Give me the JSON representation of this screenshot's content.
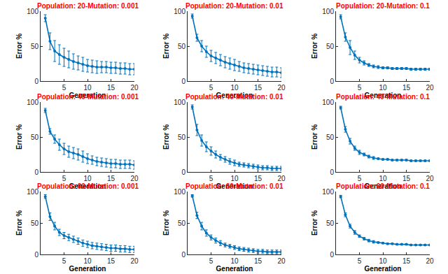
{
  "chart_data": [
    {
      "type": "line",
      "title": "Population: 20-Mutation: 0.001",
      "xlabel": "Generation",
      "ylabel": "Error %",
      "x": [
        1,
        2,
        3,
        4,
        5,
        6,
        7,
        8,
        9,
        10,
        11,
        12,
        13,
        14,
        15,
        16,
        17,
        18,
        19,
        20
      ],
      "series": [
        {
          "color": "#0072bd",
          "marker": "point",
          "values": [
            90,
            57,
            43,
            38,
            34,
            31,
            28,
            26,
            24,
            22,
            21,
            20,
            20,
            20,
            19,
            19,
            18,
            18,
            17,
            17
          ],
          "errors": [
            5,
            12,
            15,
            14,
            13,
            12,
            11,
            10,
            10,
            9,
            9,
            9,
            8,
            8,
            8,
            8,
            8,
            8,
            8,
            8
          ]
        }
      ],
      "xlim": [
        0,
        20
      ],
      "xticks": [
        5,
        10,
        15,
        20
      ],
      "ylim": [
        0,
        100
      ],
      "yticks": [
        0,
        50,
        100
      ],
      "grid": false
    },
    {
      "type": "line",
      "title": "Population: 20-Mutation: 0.01",
      "xlabel": "Generation",
      "ylabel": "Error %",
      "x": [
        1,
        2,
        3,
        4,
        5,
        6,
        7,
        8,
        9,
        10,
        11,
        12,
        13,
        14,
        15,
        16,
        17,
        18,
        19,
        20
      ],
      "series": [
        {
          "color": "#0072bd",
          "marker": "point",
          "values": [
            93,
            62,
            50,
            42,
            36,
            33,
            30,
            27,
            25,
            23,
            21,
            19,
            18,
            17,
            16,
            15,
            14,
            13,
            13,
            12
          ],
          "errors": [
            3,
            5,
            8,
            8,
            8,
            8,
            8,
            8,
            8,
            8,
            7,
            7,
            7,
            7,
            7,
            7,
            7,
            7,
            7,
            7
          ]
        }
      ],
      "xlim": [
        0,
        20
      ],
      "xticks": [
        5,
        10,
        15,
        20
      ],
      "ylim": [
        0,
        100
      ],
      "yticks": [
        0,
        50,
        100
      ],
      "grid": false
    },
    {
      "type": "line",
      "title": "Population: 20-Mutation: 0.1",
      "xlabel": "Generation",
      "ylabel": "Error %",
      "x": [
        1,
        2,
        3,
        4,
        5,
        6,
        7,
        8,
        9,
        10,
        11,
        12,
        13,
        14,
        15,
        16,
        17,
        18,
        19,
        20
      ],
      "series": [
        {
          "color": "#0072bd",
          "marker": "point",
          "values": [
            92,
            63,
            48,
            37,
            30,
            26,
            23,
            21,
            20,
            19,
            19,
            18,
            18,
            18,
            18,
            17,
            17,
            17,
            17,
            17
          ],
          "errors": [
            3,
            6,
            10,
            6,
            4,
            3,
            2,
            2,
            2,
            1.5,
            1.5,
            1.5,
            1.5,
            1.5,
            1.5,
            1.5,
            1.5,
            1.5,
            1.5,
            1.5
          ]
        }
      ],
      "xlim": [
        0,
        20
      ],
      "xticks": [
        5,
        10,
        15,
        20
      ],
      "ylim": [
        0,
        100
      ],
      "yticks": [
        0,
        50,
        100
      ],
      "grid": false
    },
    {
      "type": "line",
      "title": "Population: 40-Mutation: 0.001",
      "xlabel": "Generation",
      "ylabel": "Error %",
      "x": [
        1,
        2,
        3,
        4,
        5,
        6,
        7,
        8,
        9,
        10,
        11,
        12,
        13,
        14,
        15,
        16,
        17,
        18,
        19,
        20
      ],
      "series": [
        {
          "color": "#0072bd",
          "marker": "point",
          "values": [
            88,
            58,
            47,
            39,
            33,
            29,
            27,
            25,
            22,
            19,
            17,
            15,
            14,
            13,
            12,
            12,
            11,
            11,
            11,
            10
          ],
          "errors": [
            3,
            4,
            6,
            8,
            8,
            8,
            8,
            8,
            8,
            7,
            6,
            6,
            6,
            6,
            6,
            6,
            6,
            6,
            6,
            6
          ]
        }
      ],
      "xlim": [
        0,
        20
      ],
      "xticks": [
        5,
        10,
        15,
        20
      ],
      "ylim": [
        0,
        100
      ],
      "yticks": [
        0,
        50,
        100
      ],
      "grid": false
    },
    {
      "type": "line",
      "title": "Population: 40-Mutation: 0.01",
      "xlabel": "Generation",
      "ylabel": "Error %",
      "x": [
        1,
        2,
        3,
        4,
        5,
        6,
        7,
        8,
        9,
        10,
        11,
        12,
        13,
        14,
        15,
        16,
        17,
        18,
        19,
        20
      ],
      "series": [
        {
          "color": "#0072bd",
          "marker": "point",
          "values": [
            93,
            60,
            45,
            36,
            30,
            25,
            21,
            18,
            15,
            13,
            11,
            10,
            9,
            8,
            7,
            6,
            6,
            5,
            5,
            5
          ],
          "errors": [
            3,
            8,
            8,
            7,
            6,
            5,
            4,
            4,
            4,
            4,
            3,
            3,
            3,
            3,
            3,
            3,
            3,
            3,
            3,
            3
          ]
        }
      ],
      "xlim": [
        0,
        20
      ],
      "xticks": [
        5,
        10,
        15,
        20
      ],
      "ylim": [
        0,
        100
      ],
      "yticks": [
        0,
        50,
        100
      ],
      "grid": false
    },
    {
      "type": "line",
      "title": "Population: 40-Mutation: 0.1",
      "xlabel": "Generation",
      "ylabel": "Error %",
      "x": [
        1,
        2,
        3,
        4,
        5,
        6,
        7,
        8,
        9,
        10,
        11,
        12,
        13,
        14,
        15,
        16,
        17,
        18,
        19,
        20
      ],
      "series": [
        {
          "color": "#0072bd",
          "marker": "point",
          "values": [
            92,
            61,
            44,
            34,
            28,
            25,
            22,
            20,
            19,
            18,
            18,
            17,
            17,
            17,
            17,
            16,
            16,
            16,
            16,
            16
          ],
          "errors": [
            2,
            4,
            4,
            3,
            3,
            2,
            2,
            2,
            1,
            1,
            1,
            1,
            1,
            1,
            1,
            1,
            1,
            1,
            1,
            1
          ]
        }
      ],
      "xlim": [
        0,
        20
      ],
      "xticks": [
        5,
        10,
        15,
        20
      ],
      "ylim": [
        0,
        100
      ],
      "yticks": [
        0,
        50,
        100
      ],
      "grid": false
    },
    {
      "type": "line",
      "title": "Population: 60-Mutation: 0.001",
      "xlabel": "Generation",
      "ylabel": "Error %",
      "x": [
        1,
        2,
        3,
        4,
        5,
        6,
        7,
        8,
        9,
        10,
        11,
        12,
        13,
        14,
        15,
        16,
        17,
        18,
        19,
        20
      ],
      "series": [
        {
          "color": "#0072bd",
          "marker": "point",
          "values": [
            92,
            60,
            45,
            35,
            30,
            27,
            24,
            21,
            18,
            16,
            14,
            13,
            12,
            11,
            10,
            10,
            9,
            9,
            8,
            8
          ],
          "errors": [
            3,
            6,
            6,
            5,
            5,
            5,
            5,
            5,
            5,
            5,
            5,
            5,
            5,
            5,
            5,
            5,
            5,
            5,
            5,
            5
          ]
        }
      ],
      "xlim": [
        0,
        20
      ],
      "xticks": [
        5,
        10,
        15,
        20
      ],
      "ylim": [
        0,
        100
      ],
      "yticks": [
        0,
        50,
        100
      ],
      "grid": false
    },
    {
      "type": "line",
      "title": "Population: 60-Mutation: 0.01",
      "xlabel": "Generation",
      "ylabel": "Error %",
      "x": [
        1,
        2,
        3,
        4,
        5,
        6,
        7,
        8,
        9,
        10,
        11,
        12,
        13,
        14,
        15,
        16,
        17,
        18,
        19,
        20
      ],
      "series": [
        {
          "color": "#0072bd",
          "marker": "point",
          "values": [
            93,
            62,
            45,
            34,
            27,
            22,
            18,
            15,
            13,
            11,
            9,
            8,
            7,
            6,
            5,
            5,
            4,
            4,
            4,
            4
          ],
          "errors": [
            2,
            5,
            6,
            5,
            4,
            4,
            4,
            3,
            3,
            3,
            3,
            3,
            3,
            3,
            3,
            3,
            3,
            3,
            3,
            3
          ]
        }
      ],
      "xlim": [
        0,
        20
      ],
      "xticks": [
        5,
        10,
        15,
        20
      ],
      "ylim": [
        0,
        100
      ],
      "yticks": [
        0,
        50,
        100
      ],
      "grid": false
    },
    {
      "type": "line",
      "title": "Population: 60-Mutation: 0.1",
      "xlabel": "Generation",
      "ylabel": "Error %",
      "x": [
        1,
        2,
        3,
        4,
        5,
        6,
        7,
        8,
        9,
        10,
        11,
        12,
        13,
        14,
        15,
        16,
        17,
        18,
        19,
        20
      ],
      "series": [
        {
          "color": "#0072bd",
          "marker": "point",
          "values": [
            92,
            63,
            45,
            35,
            29,
            25,
            22,
            20,
            19,
            18,
            17,
            17,
            16,
            16,
            16,
            15,
            15,
            15,
            15,
            15
          ],
          "errors": [
            2,
            3,
            3,
            3,
            2,
            2,
            2,
            2,
            1,
            1,
            1,
            1,
            1,
            1,
            1,
            1,
            1,
            1,
            1,
            1
          ]
        }
      ],
      "xlim": [
        0,
        20
      ],
      "xticks": [
        5,
        10,
        15,
        20
      ],
      "ylim": [
        0,
        100
      ],
      "yticks": [
        0,
        50,
        100
      ],
      "grid": false
    }
  ]
}
